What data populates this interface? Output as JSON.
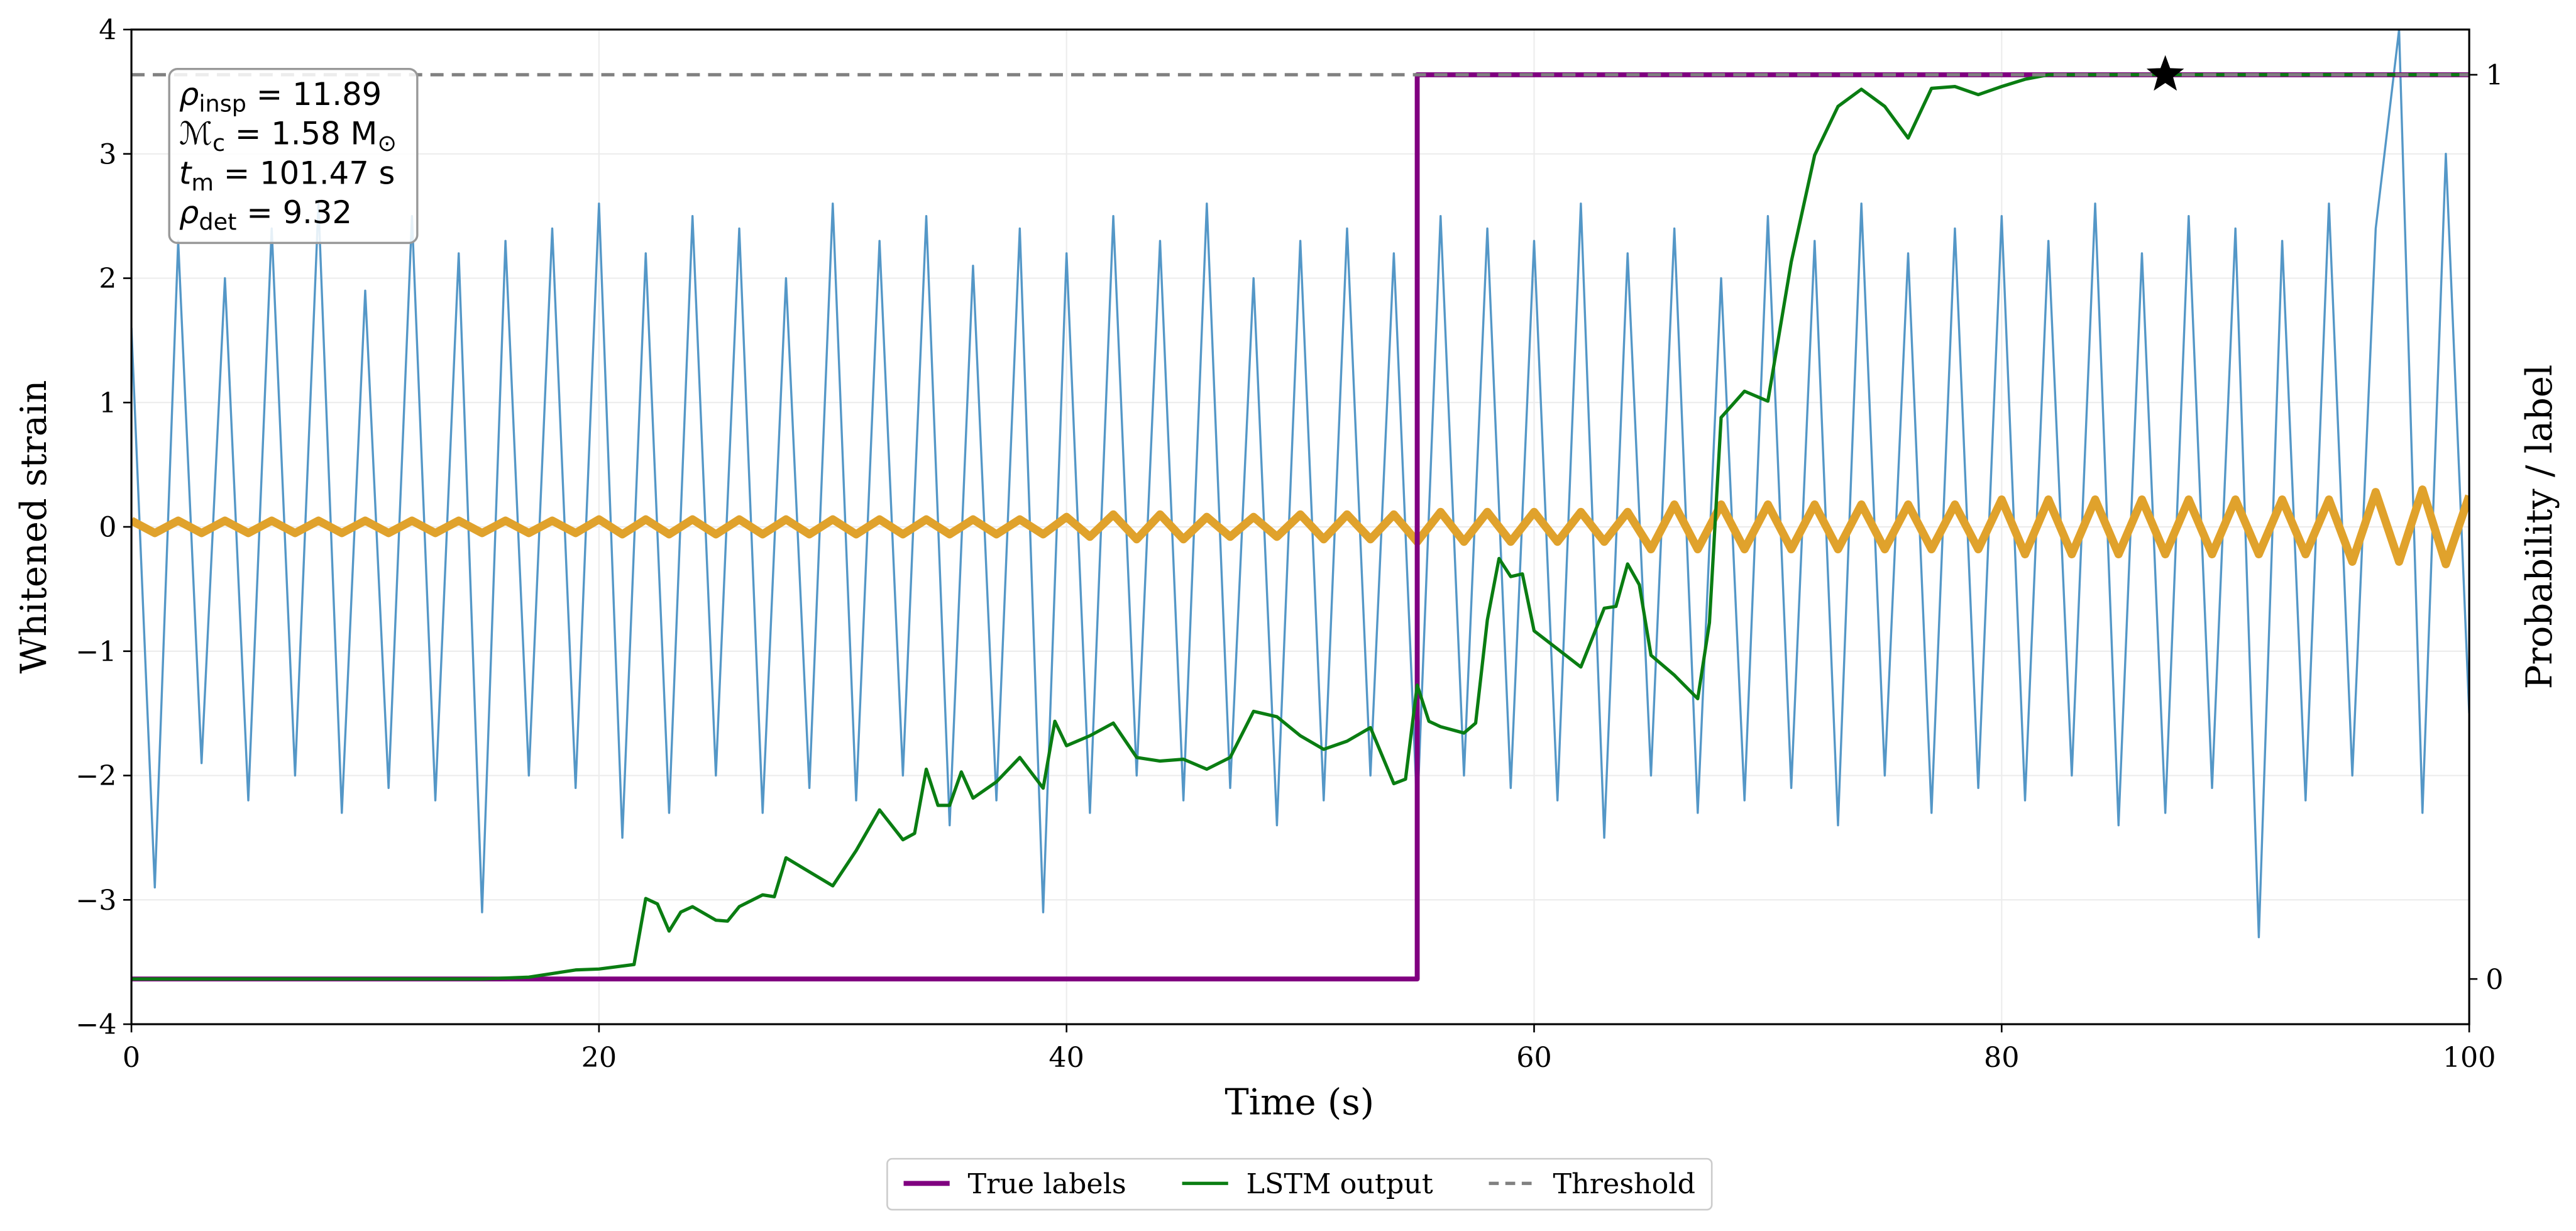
{
  "chart_data": {
    "type": "line",
    "xlabel": "Time (s)",
    "ylabel": "Whitened strain",
    "y2label": "Probability / label",
    "xlim": [
      0,
      100
    ],
    "xticks": [
      0,
      20,
      40,
      60,
      80,
      100
    ],
    "ylim": [
      -4,
      4
    ],
    "yticks": [
      {
        "value": -4,
        "label": "−4"
      },
      {
        "value": -3,
        "label": "−3"
      },
      {
        "value": -2,
        "label": "−2"
      },
      {
        "value": -1,
        "label": "−1"
      },
      0,
      1,
      2,
      3,
      4
    ],
    "y2lim": [
      -0.05,
      1.05
    ],
    "y2ticks": [
      0,
      1
    ],
    "grid": true,
    "legend": "bottom",
    "series": [
      {
        "color": "#5497c7",
        "width": 1.3,
        "x": [
          0,
          1,
          2,
          3,
          4,
          5,
          6,
          7,
          8,
          9,
          10,
          11,
          12,
          13,
          14,
          15,
          16,
          17,
          18,
          19,
          20,
          21,
          22,
          23,
          24,
          25,
          26,
          27,
          28,
          29,
          30,
          31,
          32,
          33,
          34,
          35,
          36,
          37,
          38,
          39,
          40,
          41,
          42,
          43,
          44,
          45,
          46,
          47,
          48,
          49,
          50,
          51,
          52,
          53,
          54,
          55,
          56,
          57,
          58,
          59,
          60,
          61,
          62,
          63,
          64,
          65,
          66,
          67,
          68,
          69,
          70,
          71,
          72,
          73,
          74,
          75,
          76,
          77,
          78,
          79,
          80,
          81,
          82,
          83,
          84,
          85,
          86,
          87,
          88,
          89,
          90,
          91,
          92,
          93,
          94,
          95,
          96,
          97,
          98,
          99,
          100
        ],
        "values": [
          1.6,
          -2.9,
          2.3,
          -1.9,
          2.0,
          -2.2,
          2.4,
          -2.0,
          2.6,
          -2.3,
          1.9,
          -2.1,
          2.5,
          -2.2,
          2.2,
          -3.1,
          2.3,
          -2.0,
          2.4,
          -2.1,
          2.6,
          -2.5,
          2.2,
          -2.3,
          2.5,
          -2.0,
          2.4,
          -2.3,
          2.0,
          -2.1,
          2.6,
          -2.2,
          2.3,
          -2.0,
          2.5,
          -2.4,
          2.1,
          -2.2,
          2.4,
          -3.1,
          2.2,
          -2.3,
          2.5,
          -2.0,
          2.3,
          -2.2,
          2.6,
          -2.1,
          2.0,
          -2.4,
          2.3,
          -2.2,
          2.4,
          -2.0,
          2.2,
          -2.3,
          2.5,
          -2.0,
          2.4,
          -2.1,
          2.3,
          -2.2,
          2.6,
          -2.5,
          2.2,
          -2.0,
          2.4,
          -2.3,
          2.0,
          -2.2,
          2.5,
          -2.1,
          2.3,
          -2.4,
          2.6,
          -2.0,
          2.2,
          -2.3,
          2.4,
          -2.1,
          2.5,
          -2.2,
          2.3,
          -2.0,
          2.6,
          -2.4,
          2.2,
          -2.3,
          2.5,
          -2.1,
          2.4,
          -3.3,
          2.3,
          -2.2,
          2.6,
          -2.0,
          2.4,
          4.0,
          -2.3,
          3.0,
          -1.5
        ]
      },
      {
        "color": "#e0a22c",
        "width": 5,
        "x": [
          0,
          1,
          2,
          3,
          4,
          5,
          6,
          7,
          8,
          9,
          10,
          11,
          12,
          13,
          14,
          15,
          16,
          17,
          18,
          19,
          20,
          21,
          22,
          23,
          24,
          25,
          26,
          27,
          28,
          29,
          30,
          31,
          32,
          33,
          34,
          35,
          36,
          37,
          38,
          39,
          40,
          41,
          42,
          43,
          44,
          45,
          46,
          47,
          48,
          49,
          50,
          51,
          52,
          53,
          54,
          55,
          56,
          57,
          58,
          59,
          60,
          61,
          62,
          63,
          64,
          65,
          66,
          67,
          68,
          69,
          70,
          71,
          72,
          73,
          74,
          75,
          76,
          77,
          78,
          79,
          80,
          81,
          82,
          83,
          84,
          85,
          86,
          87,
          88,
          89,
          90,
          91,
          92,
          93,
          94,
          95,
          96,
          97,
          98,
          99,
          100
        ],
        "values": [
          0.05,
          -0.05,
          0.05,
          -0.05,
          0.05,
          -0.05,
          0.05,
          -0.05,
          0.05,
          -0.05,
          0.05,
          -0.05,
          0.05,
          -0.05,
          0.05,
          -0.05,
          0.05,
          -0.05,
          0.05,
          -0.05,
          0.06,
          -0.06,
          0.06,
          -0.06,
          0.06,
          -0.06,
          0.06,
          -0.06,
          0.06,
          -0.06,
          0.06,
          -0.06,
          0.06,
          -0.06,
          0.06,
          -0.06,
          0.06,
          -0.06,
          0.06,
          -0.06,
          0.08,
          -0.08,
          0.1,
          -0.1,
          0.1,
          -0.1,
          0.08,
          -0.08,
          0.08,
          -0.08,
          0.1,
          -0.1,
          0.1,
          -0.1,
          0.1,
          -0.12,
          0.12,
          -0.12,
          0.12,
          -0.12,
          0.12,
          -0.12,
          0.12,
          -0.12,
          0.12,
          -0.18,
          0.18,
          -0.18,
          0.18,
          -0.18,
          0.18,
          -0.18,
          0.18,
          -0.18,
          0.18,
          -0.18,
          0.18,
          -0.18,
          0.18,
          -0.18,
          0.22,
          -0.22,
          0.22,
          -0.22,
          0.22,
          -0.22,
          0.22,
          -0.22,
          0.22,
          -0.22,
          0.22,
          -0.22,
          0.22,
          -0.22,
          0.22,
          -0.28,
          0.28,
          -0.28,
          0.3,
          -0.3,
          0.25
        ]
      },
      {
        "name": "True labels",
        "color": "#800080",
        "width": 3,
        "axis": "y2",
        "x": [
          0,
          55,
          55,
          100
        ],
        "values": [
          0,
          0,
          1,
          1
        ]
      },
      {
        "name": "LSTM output",
        "color": "#0a7d12",
        "width": 2,
        "axis": "y2",
        "x": [
          0,
          5,
          10,
          15,
          17,
          19,
          20,
          21.5,
          22,
          22.5,
          23,
          23.5,
          24,
          25,
          25.5,
          26,
          27,
          27.5,
          28,
          30,
          31,
          32,
          33,
          33.5,
          34,
          34.5,
          35,
          35.5,
          36,
          37,
          38,
          39,
          39.5,
          40,
          41,
          42,
          43,
          44,
          45,
          46,
          47,
          48,
          49,
          50,
          51,
          52,
          53,
          54,
          54.5,
          55,
          55.5,
          56,
          57,
          57.5,
          58,
          58.5,
          59,
          59.5,
          60,
          61,
          62,
          63,
          63.5,
          64,
          64.5,
          65,
          66,
          67,
          67.5,
          68,
          69,
          70,
          71,
          72,
          73,
          74,
          75,
          76,
          77,
          78,
          79,
          80,
          81,
          82,
          90,
          100
        ],
        "values": [
          0,
          0,
          0,
          0,
          0.002,
          0.01,
          0.011,
          0.016,
          0.089,
          0.083,
          0.053,
          0.074,
          0.08,
          0.065,
          0.064,
          0.08,
          0.093,
          0.091,
          0.134,
          0.103,
          0.142,
          0.187,
          0.154,
          0.161,
          0.232,
          0.192,
          0.192,
          0.229,
          0.2,
          0.218,
          0.245,
          0.211,
          0.285,
          0.258,
          0.269,
          0.283,
          0.245,
          0.241,
          0.243,
          0.232,
          0.245,
          0.296,
          0.29,
          0.269,
          0.254,
          0.263,
          0.278,
          0.216,
          0.221,
          0.325,
          0.285,
          0.279,
          0.272,
          0.283,
          0.397,
          0.465,
          0.445,
          0.448,
          0.385,
          0.365,
          0.345,
          0.41,
          0.412,
          0.459,
          0.436,
          0.358,
          0.336,
          0.31,
          0.394,
          0.621,
          0.65,
          0.639,
          0.793,
          0.911,
          0.965,
          0.984,
          0.965,
          0.93,
          0.985,
          0.987,
          0.978,
          0.987,
          0.995,
          1.0,
          1.0,
          1.0
        ]
      },
      {
        "name": "Threshold",
        "color": "#808080",
        "width": 2,
        "axis": "y2",
        "dash": true,
        "x": [
          0,
          100
        ],
        "values": [
          1,
          1
        ]
      }
    ],
    "marker": {
      "x": 87,
      "value": 1,
      "color": "#000000",
      "axis": "y2"
    },
    "annotations": [
      {
        "sym": "ρ",
        "sub": "insp",
        "rest": " = 11.89"
      },
      {
        "sym": "ℳ",
        "sub": "c",
        "rest": " = 1.58 M",
        "rest_sub": "⊙"
      },
      {
        "sym": "t",
        "sub": "m",
        "rest": " = 101.47 s"
      },
      {
        "sym": "ρ",
        "sub": "det",
        "rest": " = 9.32"
      }
    ]
  }
}
